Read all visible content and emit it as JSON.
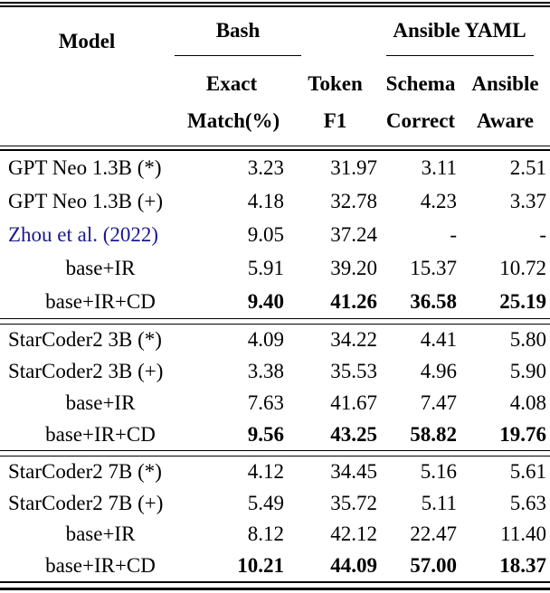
{
  "colors": {
    "text": "#000000",
    "citation_link": "#1a1a8c",
    "rule": "#000000"
  },
  "table": {
    "header": {
      "model": "Model",
      "groups": [
        {
          "label": "Bash"
        },
        {
          "label": "Ansible YAML"
        }
      ],
      "subcols": [
        {
          "line1": "Exact",
          "line2": "Match(%)"
        },
        {
          "line1": "Token",
          "line2": "F1"
        },
        {
          "line1": "Schema",
          "line2": "Correct"
        },
        {
          "line1": "Ansible",
          "line2": "Aware"
        }
      ]
    },
    "blocks": [
      {
        "rows": [
          {
            "model": "GPT Neo 1.3B (*)",
            "center": false,
            "link": false,
            "bold": false,
            "values": [
              "3.23",
              "31.97",
              "3.11",
              "2.51"
            ]
          },
          {
            "model": "GPT Neo 1.3B (+)",
            "center": false,
            "link": false,
            "bold": false,
            "values": [
              "4.18",
              "32.78",
              "4.23",
              "3.37"
            ]
          },
          {
            "model": "Zhou et al. (2022)",
            "center": false,
            "link": true,
            "bold": false,
            "values": [
              "9.05",
              "37.24",
              "-",
              "-"
            ]
          },
          {
            "model": "base+IR",
            "center": true,
            "link": false,
            "bold": false,
            "values": [
              "5.91",
              "39.20",
              "15.37",
              "10.72"
            ]
          },
          {
            "model": "base+IR+CD",
            "center": true,
            "link": false,
            "bold": true,
            "values": [
              "9.40",
              "41.26",
              "36.58",
              "25.19"
            ]
          }
        ]
      },
      {
        "rows": [
          {
            "model": "StarCoder2 3B (*)",
            "center": false,
            "link": false,
            "bold": false,
            "values": [
              "4.09",
              "34.22",
              "4.41",
              "5.80"
            ]
          },
          {
            "model": "StarCoder2 3B (+)",
            "center": false,
            "link": false,
            "bold": false,
            "values": [
              "3.38",
              "35.53",
              "4.96",
              "5.90"
            ]
          },
          {
            "model": "base+IR",
            "center": true,
            "link": false,
            "bold": false,
            "values": [
              "7.63",
              "41.67",
              "7.47",
              "4.08"
            ]
          },
          {
            "model": "base+IR+CD",
            "center": true,
            "link": false,
            "bold": true,
            "values": [
              "9.56",
              "43.25",
              "58.82",
              "19.76"
            ]
          }
        ]
      },
      {
        "rows": [
          {
            "model": "StarCoder2 7B (*)",
            "center": false,
            "link": false,
            "bold": false,
            "values": [
              "4.12",
              "34.45",
              "5.16",
              "5.61"
            ]
          },
          {
            "model": "StarCoder2 7B (+)",
            "center": false,
            "link": false,
            "bold": false,
            "values": [
              "5.49",
              "35.72",
              "5.11",
              "5.63"
            ]
          },
          {
            "model": "base+IR",
            "center": true,
            "link": false,
            "bold": false,
            "values": [
              "8.12",
              "42.12",
              "22.47",
              "11.40"
            ]
          },
          {
            "model": "base+IR+CD",
            "center": true,
            "link": false,
            "bold": true,
            "values": [
              "10.21",
              "44.09",
              "57.00",
              "18.37"
            ]
          }
        ]
      }
    ]
  }
}
